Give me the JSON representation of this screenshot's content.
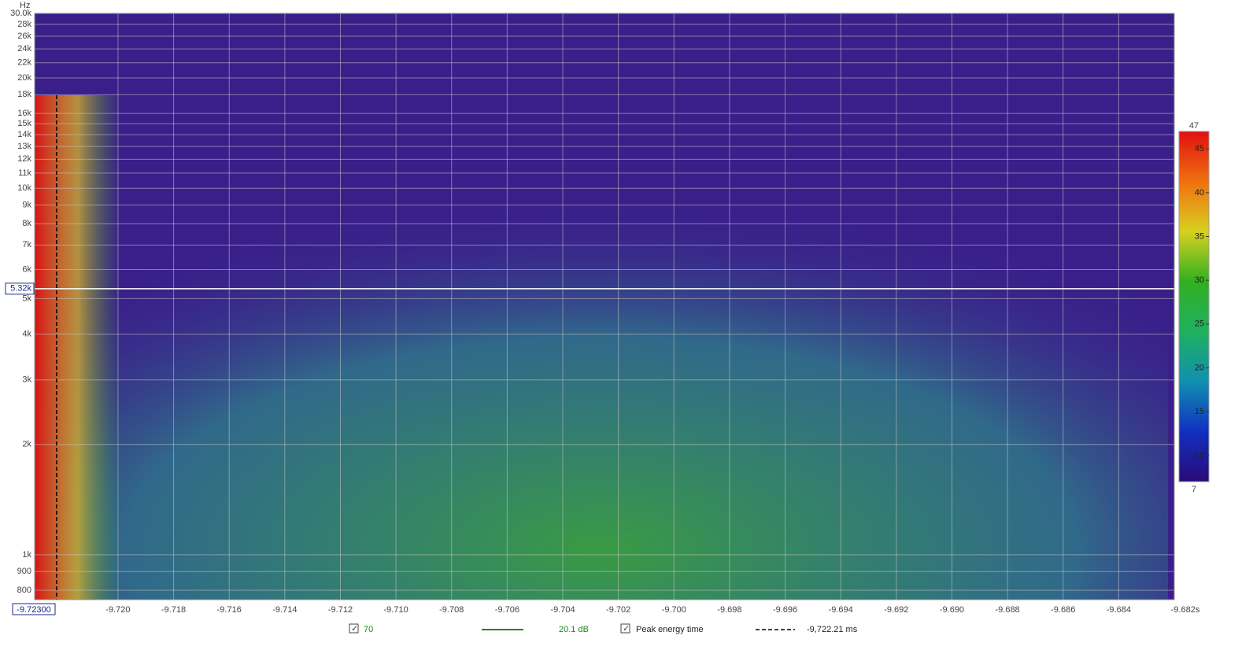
{
  "chart_data": {
    "type": "spectrogram",
    "y_axis_label": "Hz",
    "log_y": true,
    "grid": true,
    "xlim": [
      -9.723,
      -9.682
    ],
    "ylim": [
      754,
      30000
    ],
    "xticks": [
      {
        "value": -9.72,
        "label": "-9.720"
      },
      -9.718,
      -9.716,
      -9.714,
      -9.712,
      {
        "value": -9.71,
        "label": "-9.710"
      },
      -9.708,
      -9.706,
      -9.704,
      -9.702,
      {
        "value": -9.7,
        "label": "-9.700"
      },
      -9.698,
      -9.696,
      -9.694,
      -9.692,
      {
        "value": -9.69,
        "label": "-9.690"
      },
      -9.688,
      -9.686,
      -9.684,
      {
        "value": -9.682,
        "label": "-9.682s"
      }
    ],
    "yticks": [
      {
        "value": 30000,
        "label": "30.0k"
      },
      {
        "value": 28000,
        "label": "28k"
      },
      {
        "value": 26000,
        "label": "26k"
      },
      {
        "value": 24000,
        "label": "24k"
      },
      {
        "value": 22000,
        "label": "22k"
      },
      {
        "value": 20000,
        "label": "20k"
      },
      {
        "value": 18000,
        "label": "18k"
      },
      {
        "value": 16000,
        "label": "16k"
      },
      {
        "value": 15000,
        "label": "15k"
      },
      {
        "value": 14000,
        "label": "14k"
      },
      {
        "value": 13000,
        "label": "13k"
      },
      {
        "value": 12000,
        "label": "12k"
      },
      {
        "value": 11000,
        "label": "11k"
      },
      {
        "value": 10000,
        "label": "10k"
      },
      {
        "value": 9000,
        "label": "9k"
      },
      {
        "value": 8000,
        "label": "8k"
      },
      {
        "value": 7000,
        "label": "7k"
      },
      {
        "value": 6000,
        "label": "6k"
      },
      {
        "value": 5000,
        "label": "5k"
      },
      {
        "value": 4000,
        "label": "4k"
      },
      {
        "value": 3000,
        "label": "3k"
      },
      {
        "value": 2000,
        "label": "2k"
      },
      {
        "value": 1000,
        "label": "1k"
      },
      900,
      800
    ],
    "cursor": {
      "x": {
        "value": -9.723,
        "label": "-9.72300"
      },
      "y": {
        "value": 5320,
        "label": "5.32k"
      }
    },
    "colorbar": {
      "lim": [
        7,
        47
      ],
      "ticks": [
        10,
        15,
        20,
        25,
        30,
        35,
        40,
        45
      ],
      "colors": [
        "#2a0a78",
        "#1030c0",
        "#1090b0",
        "#20b060",
        "#30b020",
        "#d8d020",
        "#f07010",
        "#e01010"
      ]
    },
    "contour_checkbox": "70",
    "contour_interval": "20.1 dB",
    "contour_color": "#1a8a1a",
    "peak_checkbox": "Peak energy time",
    "peak_time": {
      "value": -9.72221,
      "label": "-9,722.21 ms"
    }
  }
}
